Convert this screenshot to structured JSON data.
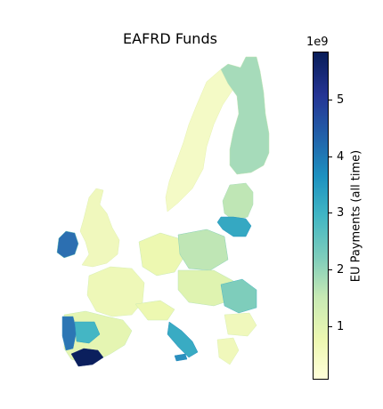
{
  "title": "EAFRD Funds",
  "colorbar": {
    "label": "EU Payments (all time)",
    "exponent_label": "1e9",
    "colormap": "YlGnBu",
    "vmin": 0.05,
    "vmax": 5.85,
    "ticks": [
      {
        "value": 1,
        "label": "1"
      },
      {
        "value": 2,
        "label": "2"
      },
      {
        "value": 3,
        "label": "3"
      },
      {
        "value": 4,
        "label": "4"
      },
      {
        "value": 5,
        "label": "5"
      }
    ]
  },
  "chart_data": {
    "type": "choropleth",
    "title": "EAFRD Funds",
    "value_label": "EU Payments (all time)",
    "value_scale": "1e9",
    "range": [
      0.05,
      5.85
    ],
    "regions": [
      {
        "name": "Andalusia (south Spain)",
        "value": 5.8
      },
      {
        "name": "Western Iberia",
        "value": 4.3
      },
      {
        "name": "Ireland",
        "value": 4.2
      },
      {
        "name": "Eastern Poland",
        "value": 3.2
      },
      {
        "name": "North-east Romania",
        "value": 3.4
      },
      {
        "name": "Northern Finland",
        "value": 2.1
      },
      {
        "name": "Southern Italy",
        "value": 3.3
      }
    ]
  },
  "colors": {
    "low": "#ffffd9",
    "high": "#081d58"
  }
}
